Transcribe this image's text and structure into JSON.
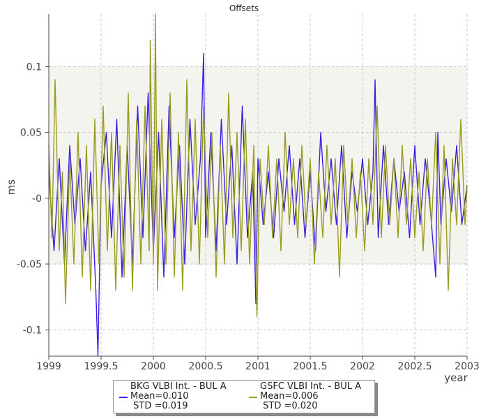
{
  "chart_data": {
    "type": "line",
    "title": "Offsets",
    "xlabel": "year",
    "ylabel": "ms",
    "xlim": [
      1999,
      2003
    ],
    "ylim": [
      -0.12,
      0.14
    ],
    "x_ticks": [
      1999,
      1999.5,
      2000,
      2000.5,
      2001,
      2001.5,
      2002,
      2002.5,
      2003
    ],
    "x_tick_labels": [
      "1999",
      "1999.5",
      "2000",
      "2000.5",
      "2001",
      "2001.5",
      "2002",
      "2002.5",
      "2003"
    ],
    "y_ticks": [
      -0.1,
      -0.05,
      0,
      0.05,
      0.1
    ],
    "y_tick_labels": [
      "-0.1",
      "-0.05",
      "-0",
      "0.05",
      "0.1"
    ],
    "grid": true,
    "shaded_band": [
      -0.05,
      0.1
    ],
    "legend_position": "bottom-center",
    "series": [
      {
        "name": "BKG VLBI Int. - BUL A",
        "color": "#3a1fe0",
        "mean_label": "Mean=0.010",
        "std_label": " STD =0.019",
        "x": [
          1999.0,
          1999.05,
          1999.1,
          1999.15,
          1999.2,
          1999.25,
          1999.3,
          1999.35,
          1999.4,
          1999.45,
          1999.47,
          1999.5,
          1999.55,
          1999.6,
          1999.65,
          1999.7,
          1999.75,
          1999.8,
          1999.85,
          1999.9,
          1999.95,
          2000.0,
          2000.05,
          2000.1,
          2000.15,
          2000.2,
          2000.25,
          2000.3,
          2000.35,
          2000.4,
          2000.45,
          2000.48,
          2000.5,
          2000.55,
          2000.6,
          2000.65,
          2000.7,
          2000.75,
          2000.8,
          2000.85,
          2000.9,
          2000.95,
          2000.98,
          2001.0,
          2001.05,
          2001.1,
          2001.15,
          2001.2,
          2001.25,
          2001.3,
          2001.35,
          2001.4,
          2001.45,
          2001.5,
          2001.55,
          2001.6,
          2001.65,
          2001.7,
          2001.75,
          2001.8,
          2001.85,
          2001.9,
          2001.95,
          2002.0,
          2002.05,
          2002.1,
          2002.12,
          2002.15,
          2002.2,
          2002.25,
          2002.3,
          2002.35,
          2002.4,
          2002.45,
          2002.5,
          2002.55,
          2002.6,
          2002.65,
          2002.7,
          2002.72,
          2002.75,
          2002.8,
          2002.85,
          2002.9,
          2002.95,
          2003.0
        ],
        "y": [
          0.02,
          -0.04,
          0.03,
          -0.05,
          0.04,
          -0.02,
          0.03,
          -0.04,
          0.02,
          -0.07,
          -0.12,
          0.01,
          0.05,
          -0.03,
          0.06,
          -0.06,
          0.04,
          -0.05,
          0.07,
          -0.03,
          0.08,
          -0.04,
          0.05,
          -0.06,
          0.07,
          -0.03,
          0.04,
          -0.05,
          0.06,
          -0.02,
          0.03,
          0.11,
          -0.03,
          0.05,
          -0.04,
          0.06,
          -0.02,
          0.04,
          -0.05,
          0.07,
          -0.03,
          0.02,
          -0.08,
          0.03,
          -0.02,
          0.02,
          -0.03,
          0.03,
          -0.01,
          0.04,
          -0.02,
          0.03,
          -0.03,
          0.02,
          -0.04,
          0.05,
          -0.01,
          0.03,
          -0.02,
          0.04,
          -0.03,
          0.02,
          -0.01,
          0.03,
          -0.02,
          0.02,
          0.09,
          -0.03,
          0.04,
          -0.02,
          0.03,
          -0.01,
          0.02,
          -0.03,
          0.04,
          -0.02,
          0.03,
          -0.01,
          -0.06,
          0.05,
          -0.02,
          0.03,
          -0.01,
          0.04,
          -0.02,
          0.01
        ]
      },
      {
        "name": "GSFC VLBI Int. - BUL A",
        "color": "#9a9a22",
        "mean_label": "Mean=0.006",
        "std_label": " STD =0.020",
        "x": [
          1999.0,
          1999.03,
          1999.06,
          1999.1,
          1999.13,
          1999.16,
          1999.2,
          1999.24,
          1999.28,
          1999.32,
          1999.36,
          1999.4,
          1999.44,
          1999.48,
          1999.52,
          1999.56,
          1999.6,
          1999.64,
          1999.68,
          1999.72,
          1999.76,
          1999.8,
          1999.84,
          1999.88,
          1999.92,
          1999.96,
          1999.97,
          2000.0,
          2000.02,
          2000.04,
          2000.08,
          2000.12,
          2000.16,
          2000.2,
          2000.24,
          2000.28,
          2000.32,
          2000.36,
          2000.4,
          2000.44,
          2000.48,
          2000.52,
          2000.56,
          2000.6,
          2000.64,
          2000.68,
          2000.72,
          2000.76,
          2000.8,
          2000.84,
          2000.88,
          2000.92,
          2000.96,
          2000.99,
          2001.02,
          2001.06,
          2001.1,
          2001.14,
          2001.18,
          2001.22,
          2001.26,
          2001.3,
          2001.34,
          2001.38,
          2001.42,
          2001.46,
          2001.5,
          2001.54,
          2001.58,
          2001.62,
          2001.66,
          2001.7,
          2001.74,
          2001.78,
          2001.82,
          2001.86,
          2001.9,
          2001.94,
          2001.98,
          2002.02,
          2002.06,
          2002.1,
          2002.14,
          2002.18,
          2002.22,
          2002.26,
          2002.3,
          2002.34,
          2002.38,
          2002.42,
          2002.46,
          2002.5,
          2002.54,
          2002.58,
          2002.62,
          2002.66,
          2002.7,
          2002.74,
          2002.78,
          2002.82,
          2002.86,
          2002.9,
          2002.94,
          2002.98,
          2003.0
        ],
        "y": [
          0.04,
          -0.03,
          0.09,
          -0.04,
          0.02,
          -0.08,
          0.03,
          -0.05,
          0.05,
          -0.06,
          0.04,
          -0.07,
          0.06,
          -0.05,
          0.07,
          -0.04,
          0.05,
          -0.07,
          0.04,
          -0.06,
          0.08,
          -0.07,
          0.06,
          -0.05,
          0.07,
          -0.04,
          0.12,
          -0.05,
          0.14,
          -0.07,
          0.06,
          -0.05,
          0.08,
          -0.06,
          0.05,
          -0.07,
          0.09,
          -0.04,
          0.06,
          -0.05,
          0.07,
          -0.03,
          0.05,
          -0.06,
          0.04,
          -0.05,
          0.08,
          -0.03,
          0.05,
          -0.04,
          0.06,
          -0.05,
          0.04,
          -0.09,
          0.03,
          -0.02,
          0.04,
          -0.03,
          0.03,
          -0.04,
          0.05,
          -0.02,
          0.03,
          -0.03,
          0.04,
          -0.02,
          0.03,
          -0.05,
          0.02,
          -0.03,
          0.04,
          -0.02,
          0.03,
          -0.06,
          0.04,
          -0.02,
          0.03,
          -0.03,
          0.02,
          -0.04,
          0.03,
          -0.02,
          0.07,
          -0.03,
          0.04,
          -0.02,
          0.03,
          -0.03,
          0.04,
          -0.02,
          0.03,
          -0.03,
          0.02,
          -0.04,
          0.03,
          -0.02,
          0.05,
          -0.05,
          0.04,
          -0.07,
          0.03,
          -0.02,
          0.06,
          -0.02,
          0.01
        ]
      }
    ]
  }
}
